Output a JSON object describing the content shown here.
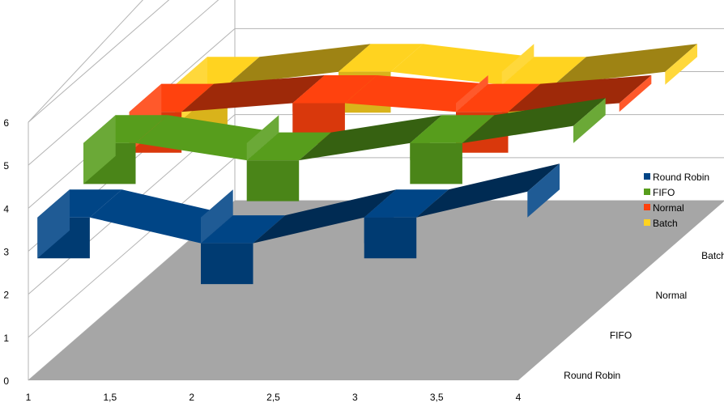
{
  "chart_data": {
    "type": "3d-step-line",
    "title": "",
    "x_ticks": [
      "1",
      "1,5",
      "2",
      "2,5",
      "3",
      "3,5",
      "4"
    ],
    "z_ticks": [
      "0",
      "1",
      "2",
      "3",
      "4",
      "5",
      "6"
    ],
    "depth_labels": [
      "Round Robin",
      "FIFO",
      "Normal",
      "Batch"
    ],
    "x": [
      1,
      2,
      3,
      4
    ],
    "ylim": [
      0,
      6
    ],
    "series": [
      {
        "name": "Round Robin",
        "values": [
          3.6,
          3.0,
          3.6,
          4.2
        ],
        "color": "#004586"
      },
      {
        "name": "FIFO",
        "values": [
          4.4,
          4.0,
          4.4,
          4.8
        ],
        "color": "#579d1c"
      },
      {
        "name": "Normal",
        "values": [
          4.2,
          4.4,
          4.2,
          4.4
        ],
        "color": "#ff420e"
      },
      {
        "name": "Batch",
        "values": [
          3.9,
          4.2,
          3.9,
          4.2
        ],
        "color": "#ffd320"
      }
    ],
    "legend": {
      "position": "right",
      "entries": [
        "Round Robin",
        "FIFO",
        "Normal",
        "Batch"
      ]
    }
  }
}
